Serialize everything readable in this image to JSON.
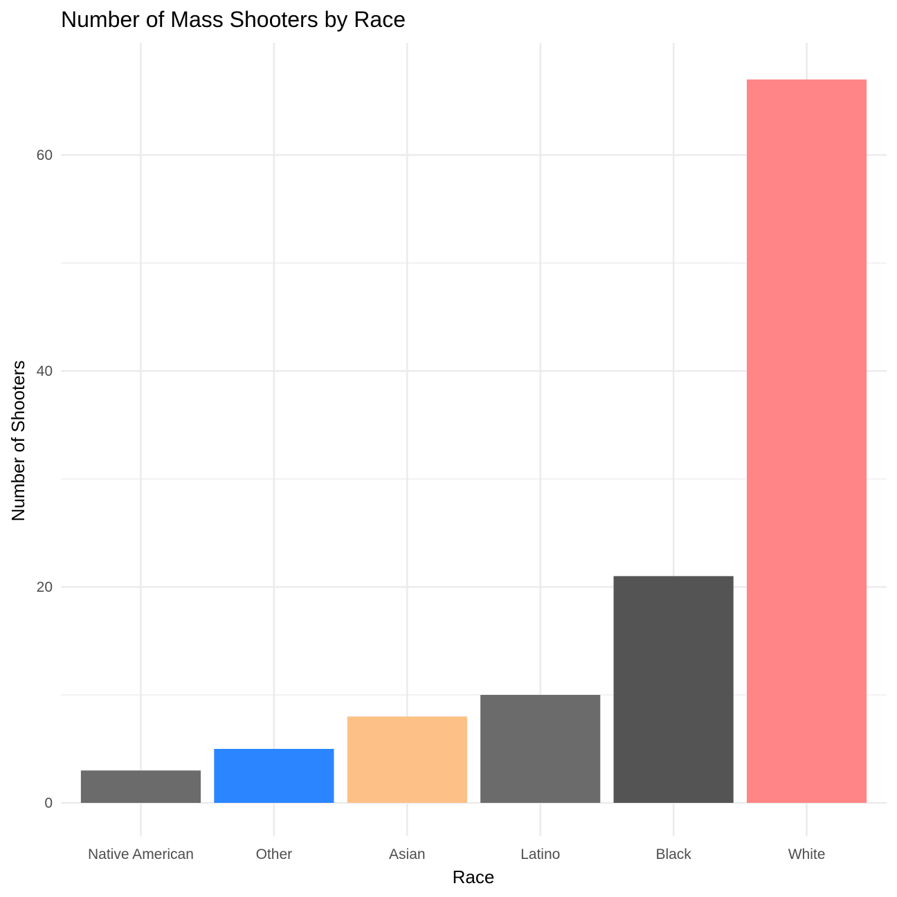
{
  "chart_data": {
    "type": "bar",
    "title": "Number of Mass Shooters by Race",
    "xlabel": "Race",
    "ylabel": "Number of Shooters",
    "categories": [
      "Native American",
      "Other",
      "Asian",
      "Latino",
      "Black",
      "White"
    ],
    "values": [
      3,
      5,
      8,
      10,
      21,
      67
    ],
    "colors": [
      "#6b6b6b",
      "#2b85ff",
      "#fdc187",
      "#6b6b6b",
      "#545454",
      "#ff8587"
    ],
    "ylim": [
      0,
      67
    ],
    "y_ticks": [
      0,
      20,
      40,
      60
    ],
    "y_minor_ticks": [
      10,
      30,
      50
    ],
    "grid": true,
    "legend": "none"
  }
}
